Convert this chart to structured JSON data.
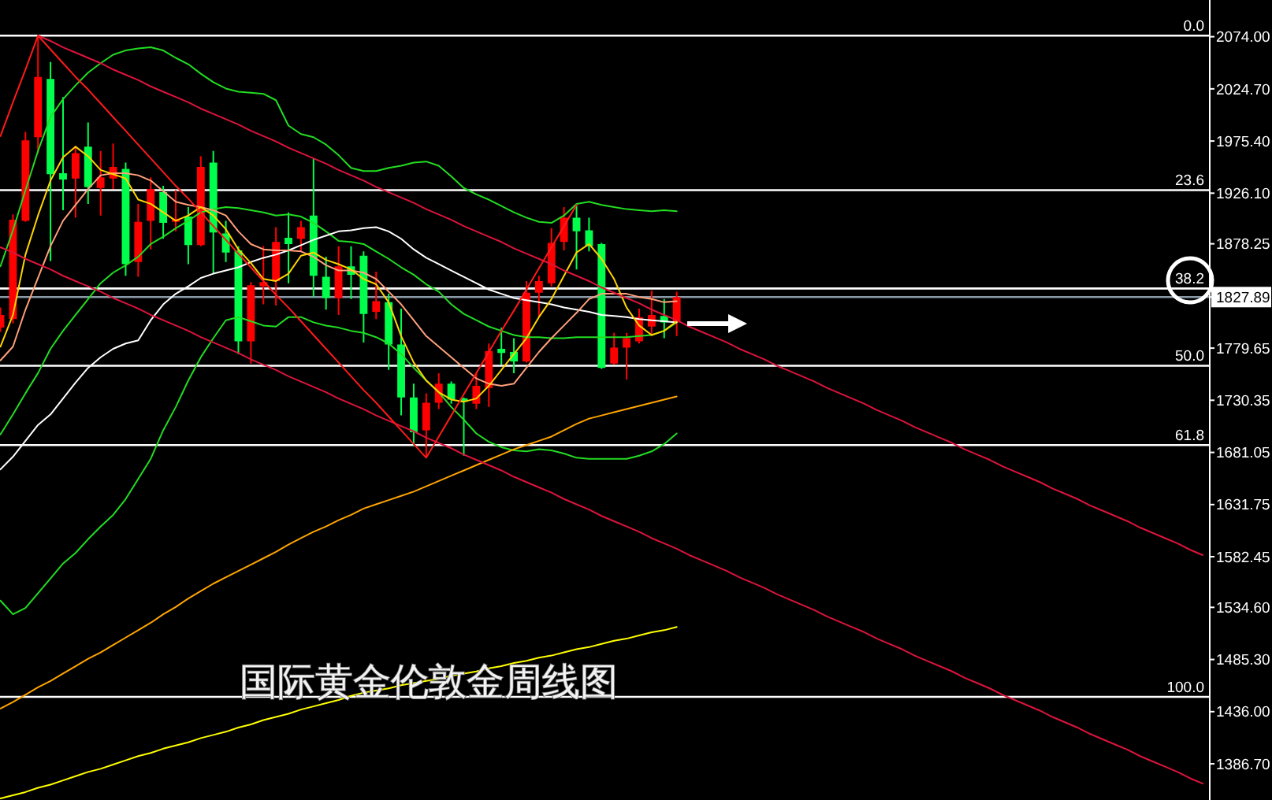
{
  "chart_data": {
    "type": "candlestick",
    "title": "国际黄金伦敦金周线图",
    "categories": [
      null,
      null,
      null,
      null,
      null,
      null,
      null,
      null,
      null,
      null,
      null,
      null,
      null,
      null,
      null,
      null,
      null,
      null,
      null,
      null,
      null,
      null,
      null,
      null,
      null,
      null,
      null,
      null,
      null,
      null,
      null,
      null,
      null,
      null,
      null,
      null,
      null,
      null,
      null,
      null,
      null,
      null,
      null,
      null,
      null,
      null,
      null,
      null,
      null,
      null,
      null,
      null,
      null,
      null,
      null,
      null,
      null,
      null,
      null,
      null,
      null,
      null,
      null,
      null,
      null,
      null,
      null,
      null,
      null,
      null,
      null,
      null,
      null,
      null,
      null,
      null,
      null,
      null,
      null,
      null,
      null,
      null,
      null,
      null,
      null,
      null,
      null,
      null,
      null,
      null,
      null,
      null,
      null,
      null,
      null,
      null,
      null
    ],
    "ohlc": [
      [
        1799,
        1818,
        1795,
        1811
      ],
      [
        1807,
        1906,
        1803,
        1901
      ],
      [
        1900,
        1984,
        1899,
        1976
      ],
      [
        1979,
        2075,
        1964,
        2036
      ],
      [
        2034,
        2050,
        1862,
        1944
      ],
      [
        1945,
        2017,
        1910,
        1939
      ],
      [
        1940,
        1971,
        1903,
        1964
      ],
      [
        1970,
        1993,
        1916,
        1932
      ],
      [
        1931,
        1966,
        1905,
        1941
      ],
      [
        1940,
        1973,
        1930,
        1951
      ],
      [
        1949,
        1955,
        1848,
        1859
      ],
      [
        1861,
        1916,
        1847,
        1899
      ],
      [
        1900,
        1941,
        1873,
        1930
      ],
      [
        1927,
        1933,
        1883,
        1898
      ],
      [
        1899,
        1929,
        1890,
        1902
      ],
      [
        1904,
        1913,
        1859,
        1877
      ],
      [
        1877,
        1961,
        1876,
        1951
      ],
      [
        1955,
        1966,
        1850,
        1889
      ],
      [
        1888,
        1900,
        1861,
        1870
      ],
      [
        1872,
        1876,
        1774,
        1786
      ],
      [
        1786,
        1842,
        1765,
        1839
      ],
      [
        1838,
        1876,
        1821,
        1842
      ],
      [
        1843,
        1894,
        1820,
        1880
      ],
      [
        1884,
        1908,
        1841,
        1878
      ],
      [
        1883,
        1900,
        1871,
        1894
      ],
      [
        1905,
        1959,
        1828,
        1848
      ],
      [
        1847,
        1866,
        1816,
        1827
      ],
      [
        1827,
        1876,
        1811,
        1857
      ],
      [
        1857,
        1876,
        1826,
        1849
      ],
      [
        1867,
        1871,
        1785,
        1812
      ],
      [
        1814,
        1852,
        1807,
        1824
      ],
      [
        1823,
        1831,
        1759,
        1783
      ],
      [
        1783,
        1817,
        1716,
        1733
      ],
      [
        1733,
        1746,
        1687,
        1700
      ],
      [
        1702,
        1737,
        1676,
        1728
      ],
      [
        1728,
        1756,
        1722,
        1746
      ],
      [
        1746,
        1748,
        1727,
        1731
      ],
      [
        1732,
        1733,
        1678,
        1729
      ],
      [
        1727,
        1756,
        1722,
        1744
      ],
      [
        1742,
        1784,
        1724,
        1777
      ],
      [
        1779,
        1799,
        1764,
        1775
      ],
      [
        1776,
        1789,
        1756,
        1767
      ],
      [
        1767,
        1843,
        1766,
        1832
      ],
      [
        1832,
        1848,
        1809,
        1843
      ],
      [
        1841,
        1893,
        1838,
        1879
      ],
      [
        1880,
        1913,
        1872,
        1903
      ],
      [
        1903,
        1915,
        1854,
        1890
      ],
      [
        1891,
        1903,
        1871,
        1876
      ],
      [
        1878,
        1879,
        1760,
        1761
      ],
      [
        1765,
        1794,
        1764,
        1780
      ],
      [
        1780,
        1794,
        1750,
        1789
      ],
      [
        1786,
        1817,
        1784,
        1809
      ],
      [
        1800,
        1834,
        1791,
        1811
      ],
      [
        1810,
        1826,
        1789,
        1804
      ],
      [
        1804,
        1833,
        1791,
        1828
      ],
      null,
      null,
      null,
      null,
      null,
      null,
      null,
      null,
      null,
      null,
      null,
      null,
      null,
      null,
      null,
      null,
      null,
      null,
      null,
      null,
      null,
      null,
      null,
      null,
      null,
      null,
      null,
      null,
      null,
      null,
      null,
      null,
      null,
      null,
      null,
      null,
      null,
      null,
      null,
      null,
      null,
      null
    ],
    "colors": [
      "#ff0000",
      "#ff0000",
      "#ff0000",
      "#ff0000",
      "#00ff4c",
      "#00ff4c",
      "#ff0000",
      "#00ff4c",
      "#ff0000",
      "#ff0000",
      "#00ff4c",
      "#ff0000",
      "#ff0000",
      "#00ff4c",
      "#ff0000",
      "#00ff4c",
      "#ff0000",
      "#00ff4c",
      "#00ff4c",
      "#00ff4c",
      "#ff0000",
      "#ff0000",
      "#ff0000",
      "#00ff4c",
      "#ff0000",
      "#00ff4c",
      "#00ff4c",
      "#ff0000",
      "#00ff4c",
      "#00ff4c",
      "#ff0000",
      "#00ff4c",
      "#00ff4c",
      "#00ff4c",
      "#ff0000",
      "#ff0000",
      "#00ff4c",
      "#00ff4c",
      "#ff0000",
      "#ff0000",
      "#00ff4c",
      "#00ff4c",
      "#ff0000",
      "#ff0000",
      "#ff0000",
      "#ff0000",
      "#00ff4c",
      "#00ff4c",
      "#00ff4c",
      "#ff0000",
      "#ff0000",
      "#ff0000",
      "#ff0000",
      "#00ff4c",
      "#ff0000",
      null,
      null,
      null,
      null,
      null,
      null,
      null,
      null,
      null,
      null,
      null,
      null,
      null,
      null,
      null,
      null,
      null,
      null,
      null,
      null,
      null,
      null,
      null,
      null,
      null,
      null,
      null,
      null,
      null,
      null,
      null,
      null,
      null,
      null,
      null,
      null,
      null,
      null,
      null,
      null,
      null,
      null
    ],
    "series": [
      {
        "type": "line",
        "color": "#22dd22",
        "values": [
          1857,
          1891,
          1929,
          1966,
          1998,
          2015,
          2028,
          2040,
          2049,
          2057,
          2061,
          2063,
          2064,
          2061,
          2054,
          2048,
          2039,
          2031,
          2025,
          2022,
          2021,
          2020,
          2014,
          1990,
          1982,
          1979,
          1972,
          1962,
          1950,
          1947,
          1947,
          1950,
          1952,
          1955,
          1956,
          1952,
          1942,
          1931,
          1925,
          1920,
          1914,
          1908,
          1903,
          1899,
          1898,
          1905,
          1916,
          1918,
          1915,
          1913,
          1911,
          1910,
          1909,
          1910,
          1909,
          null,
          null,
          null,
          null,
          null,
          null,
          null,
          null,
          null,
          null,
          null,
          null,
          null,
          null,
          null,
          null,
          null,
          null,
          null,
          null,
          null,
          null,
          null,
          null,
          null,
          null,
          null,
          null,
          null,
          null,
          null,
          null,
          null,
          null,
          null,
          null,
          null,
          null,
          null,
          null,
          null,
          null
        ]
      },
      {
        "type": "line",
        "color": "#22dd22",
        "values": [
          1698,
          1717,
          1737,
          1756,
          1779,
          1796,
          1811,
          1826,
          1841,
          1851,
          1858,
          1866,
          1878,
          1885,
          1893,
          1900,
          1908,
          1911,
          1913,
          1912,
          1910,
          1908,
          1905,
          1906,
          1904,
          1898,
          1890,
          1881,
          1880,
          1878,
          1871,
          1864,
          1856,
          1849,
          1840,
          1833,
          1821,
          1812,
          1806,
          1800,
          1796,
          1792,
          1790,
          1790,
          1789,
          1789,
          1790,
          1790,
          1790,
          1790,
          1790,
          1791,
          1792,
          1796,
          1804,
          null,
          null,
          null,
          null,
          null,
          null,
          null,
          null,
          null,
          null,
          null,
          null,
          null,
          null,
          null,
          null,
          null,
          null,
          null,
          null,
          null,
          null,
          null,
          null,
          null,
          null,
          null,
          null,
          null,
          null,
          null,
          null,
          null,
          null,
          null,
          null,
          null,
          null,
          null,
          null,
          null,
          null
        ]
      },
      {
        "type": "line",
        "color": "#22dd22",
        "values": [
          1541,
          1528,
          1534,
          1548,
          1562,
          1576,
          1586,
          1599,
          1611,
          1622,
          1637,
          1656,
          1675,
          1702,
          1724,
          1749,
          1771,
          1789,
          1806,
          1809,
          1805,
          1801,
          1800,
          1809,
          1809,
          1804,
          1801,
          1799,
          1796,
          1794,
          1790,
          1784,
          1774,
          1761,
          1749,
          1738,
          1724,
          1712,
          1699,
          1691,
          1686,
          1683,
          1682,
          1684,
          1683,
          1680,
          1676,
          1675,
          1675,
          1675,
          1675,
          1678,
          1682,
          1689,
          1699,
          null,
          null,
          null,
          null,
          null,
          null,
          null,
          null,
          null,
          null,
          null,
          null,
          null,
          null,
          null,
          null,
          null,
          null,
          null,
          null,
          null,
          null,
          null,
          null,
          null,
          null,
          null,
          null,
          null,
          null,
          null,
          null,
          null,
          null,
          null,
          null,
          null,
          null,
          null,
          null,
          null,
          null
        ]
      },
      {
        "type": "line",
        "color": "#ffffff",
        "values": [
          1665,
          1677,
          1692,
          1707,
          1717,
          1732,
          1747,
          1761,
          1771,
          1779,
          1784,
          1787,
          1806,
          1821,
          1831,
          1838,
          1846,
          1850,
          1853,
          1856,
          1861,
          1865,
          1868,
          1872,
          1877,
          1882,
          1886,
          1890,
          1891,
          1893,
          1894,
          1890,
          1883,
          1873,
          1865,
          1859,
          1853,
          1847,
          1841,
          1835,
          1831,
          1827,
          1825,
          1823,
          1821,
          1818,
          1816,
          1814,
          1811,
          1810,
          1809,
          1807,
          1806,
          1805,
          1804,
          null,
          null,
          null,
          null,
          null,
          null,
          null,
          null,
          null,
          null,
          null,
          null,
          null,
          null,
          null,
          null,
          null,
          null,
          null,
          null,
          null,
          null,
          null,
          null,
          null,
          null,
          null,
          null,
          null,
          null,
          null,
          null,
          null,
          null,
          null,
          null,
          null,
          null,
          null,
          null,
          null,
          null
        ]
      },
      {
        "type": "line",
        "color": "#ffa07a",
        "values": [
          1768,
          1781,
          1816,
          1846,
          1876,
          1900,
          1915,
          1930,
          1943,
          1945,
          1945,
          1943,
          1938,
          1928,
          1918,
          1915,
          1913,
          1910,
          1905,
          1890,
          1878,
          1873,
          1872,
          1872,
          1871,
          1866,
          1858,
          1853,
          1853,
          1851,
          1845,
          1833,
          1821,
          1806,
          1791,
          1781,
          1771,
          1761,
          1751,
          1746,
          1744,
          1746,
          1761,
          1776,
          1789,
          1801,
          1813,
          1826,
          1831,
          1831,
          1831,
          1828,
          1826,
          1823,
          1824,
          null,
          null,
          null,
          null,
          null,
          null,
          null,
          null,
          null,
          null,
          null,
          null,
          null,
          null,
          null,
          null,
          null,
          null,
          null,
          null,
          null,
          null,
          null,
          null,
          null,
          null,
          null,
          null,
          null,
          null,
          null,
          null,
          null,
          null,
          null,
          null,
          null,
          null,
          null,
          null,
          null,
          null
        ]
      },
      {
        "type": "line",
        "color": "#ffd400",
        "values": [
          1781,
          1811,
          1868,
          1905,
          1938,
          1960,
          1970,
          1961,
          1948,
          1944,
          1940,
          1920,
          1916,
          1908,
          1900,
          1905,
          1913,
          1905,
          1892,
          1873,
          1860,
          1845,
          1843,
          1850,
          1867,
          1870,
          1863,
          1859,
          1854,
          1845,
          1840,
          1823,
          1791,
          1766,
          1749,
          1738,
          1731,
          1729,
          1732,
          1744,
          1759,
          1774,
          1789,
          1809,
          1826,
          1848,
          1870,
          1878,
          1864,
          1845,
          1818,
          1801,
          1792,
          1796,
          1805,
          null,
          null,
          null,
          null,
          null,
          null,
          null,
          null,
          null,
          null,
          null,
          null,
          null,
          null,
          null,
          null,
          null,
          null,
          null,
          null,
          null,
          null,
          null,
          null,
          null,
          null,
          null,
          null,
          null,
          null,
          null,
          null,
          null,
          null,
          null,
          null,
          null,
          null,
          null,
          null,
          null,
          null
        ]
      },
      {
        "type": "line",
        "color": "#ffa500",
        "values": [
          1439,
          1445,
          1452,
          1459,
          1465,
          1472,
          1479,
          1486,
          1492,
          1499,
          1506,
          1513,
          1520,
          1528,
          1535,
          1543,
          1550,
          1557,
          1563,
          1569,
          1575,
          1581,
          1587,
          1594,
          1600,
          1606,
          1611,
          1617,
          1622,
          1628,
          1632,
          1636,
          1640,
          1644,
          1649,
          1654,
          1659,
          1664,
          1669,
          1674,
          1679,
          1684,
          1688,
          1692,
          1696,
          1702,
          1708,
          1713,
          1716,
          1719,
          1722,
          1725,
          1728,
          1731,
          1734,
          null,
          null,
          null,
          null,
          null,
          null,
          null,
          null,
          null,
          null,
          null,
          null,
          null,
          null,
          null,
          null,
          null,
          null,
          null,
          null,
          null,
          null,
          null,
          null,
          null,
          null,
          null,
          null,
          null,
          null,
          null,
          null,
          null,
          null,
          null,
          null,
          null,
          null,
          null,
          null,
          null,
          null
        ]
      },
      {
        "type": "line",
        "color": "#ffff00",
        "values": [
          1354,
          1357,
          1360,
          1364,
          1367,
          1371,
          1375,
          1379,
          1382,
          1386,
          1390,
          1394,
          1397,
          1401,
          1404,
          1407,
          1411,
          1414,
          1417,
          1421,
          1424,
          1428,
          1431,
          1434,
          1438,
          1441,
          1444,
          1447,
          1451,
          1454,
          1456,
          1458,
          1461,
          1463,
          1465,
          1467,
          1470,
          1472,
          1474,
          1477,
          1479,
          1482,
          1484,
          1487,
          1489,
          1492,
          1495,
          1497,
          1500,
          1503,
          1505,
          1508,
          1511,
          1513,
          1516,
          null,
          null,
          null,
          null,
          null,
          null,
          null,
          null,
          null,
          null,
          null,
          null,
          null,
          null,
          null,
          null,
          null,
          null,
          null,
          null,
          null,
          null,
          null,
          null,
          null,
          null,
          null,
          null,
          null,
          null,
          null,
          null,
          null,
          null,
          null,
          null,
          null,
          null,
          null,
          null,
          null,
          null
        ]
      },
      {
        "type": "line",
        "color": "#dc143c",
        "values": [
          null,
          null,
          null,
          2075,
          2070,
          2064,
          2059,
          2054,
          2049,
          2043,
          2038,
          2033,
          2027,
          2022,
          2017,
          2012,
          2006,
          2001,
          1996,
          1991,
          1985,
          1980,
          1975,
          1969,
          1964,
          1959,
          1954,
          1948,
          1943,
          1938,
          1932,
          1927,
          1922,
          1917,
          1911,
          1906,
          1901,
          1895,
          1890,
          1885,
          1880,
          1874,
          1869,
          1864,
          1859,
          1853,
          1848,
          1843,
          1837,
          1832,
          1827,
          1822,
          1816,
          1811,
          1806,
          1800,
          1795,
          1790,
          1785,
          1779,
          1774,
          1769,
          1763,
          1758,
          1753,
          1748,
          1742,
          1737,
          1732,
          1727,
          1721,
          1716,
          1711,
          1705,
          1700,
          1695,
          1690,
          1684,
          1679,
          1674,
          1668,
          1663,
          1658,
          1653,
          1647,
          1642,
          1637,
          1631,
          1626,
          1621,
          1616,
          1610,
          1605,
          1600,
          1595,
          1589,
          1584
        ]
      },
      {
        "type": "line",
        "color": "#dc143c",
        "values": [
          1875,
          1870,
          1864,
          1859,
          1854,
          1848,
          1843,
          1838,
          1833,
          1827,
          1822,
          1817,
          1811,
          1806,
          1801,
          1796,
          1790,
          1785,
          1780,
          1775,
          1769,
          1764,
          1759,
          1753,
          1748,
          1743,
          1738,
          1732,
          1727,
          1722,
          1716,
          1711,
          1706,
          1701,
          1695,
          1690,
          1685,
          1679,
          1674,
          1669,
          1664,
          1658,
          1653,
          1648,
          1643,
          1637,
          1632,
          1627,
          1621,
          1616,
          1611,
          1606,
          1600,
          1595,
          1590,
          1584,
          1579,
          1574,
          1569,
          1563,
          1558,
          1553,
          1547,
          1542,
          1537,
          1532,
          1526,
          1521,
          1516,
          1511,
          1505,
          1500,
          1495,
          1489,
          1484,
          1479,
          1474,
          1468,
          1463,
          1458,
          1452,
          1447,
          1442,
          1437,
          1431,
          1426,
          1421,
          1415,
          1410,
          1405,
          1400,
          1394,
          1389,
          1384,
          1379,
          1373,
          1368
        ]
      },
      {
        "type": "line",
        "color": "#ff1a1a",
        "values": [
          1980,
          2012,
          2043,
          2075,
          2062,
          2049,
          2036,
          2024,
          2011,
          1998,
          1985,
          1972,
          1959,
          1946,
          1933,
          1921,
          1908,
          1895,
          1882,
          1869,
          1856,
          1843,
          1830,
          1818,
          1805,
          1792,
          1779,
          1766,
          1753,
          1740,
          1728,
          1715,
          1702,
          1689,
          1676,
          1696,
          1716,
          1736,
          1756,
          1776,
          1796,
          1815,
          1835,
          1855,
          1875,
          1895,
          1915,
          null,
          null,
          null,
          null,
          null,
          null,
          null,
          null,
          null,
          null,
          null,
          null,
          null,
          null,
          null,
          null,
          null,
          null,
          null,
          null,
          null,
          null,
          null,
          null,
          null,
          null,
          null,
          null,
          null,
          null,
          null,
          null,
          null,
          null,
          null,
          null,
          null,
          null,
          null,
          null,
          null,
          null,
          null,
          null,
          null,
          null,
          null,
          null,
          null,
          null
        ]
      }
    ],
    "ylim": [
      1352.5,
      2108.7
    ],
    "yticks": [
      {
        "value": 2074,
        "label": "2074.00"
      },
      {
        "value": 2024.7,
        "label": "2024.70"
      },
      {
        "value": 1975.4,
        "label": "1975.40"
      },
      {
        "value": 1926.1,
        "label": "1926.10"
      },
      {
        "value": 1878.25,
        "label": "1878.25"
      },
      {
        "value": 1827.89,
        "label": "1827.89"
      },
      {
        "value": 1779.65,
        "label": "1779.65"
      },
      {
        "value": 1730.35,
        "label": "1730.35"
      },
      {
        "value": 1681.05,
        "label": "1681.05"
      },
      {
        "value": 1631.75,
        "label": "1631.75"
      },
      {
        "value": 1582.45,
        "label": "1582.45"
      },
      {
        "value": 1534.6,
        "label": "1534.60"
      },
      {
        "value": 1485.3,
        "label": "1485.30"
      },
      {
        "value": 1436,
        "label": "1436.00"
      },
      {
        "value": 1386.7,
        "label": "1386.70"
      }
    ],
    "ref_lines": [
      {
        "axis": "y",
        "value": 2075,
        "color": "#ffffff"
      },
      {
        "axis": "y",
        "value": 1929,
        "color": "#ffffff"
      },
      {
        "axis": "y",
        "value": 1836,
        "color": "#ffffff"
      },
      {
        "axis": "y",
        "value": 1763,
        "color": "#ffffff"
      },
      {
        "axis": "y",
        "value": 1688,
        "color": "#ffffff"
      },
      {
        "axis": "y",
        "value": 1450,
        "color": "#ffffff"
      },
      {
        "axis": "y",
        "value": 1827.89,
        "color": "#8a99a6"
      }
    ],
    "annotations": [
      {
        "text": "0.0",
        "y": 2075
      },
      {
        "text": "23.6",
        "y": 1929
      },
      {
        "text": "38.2",
        "y": 1836
      },
      {
        "text": "50.0",
        "y": 1763
      },
      {
        "text": "61.8",
        "y": 1688
      },
      {
        "text": "100.0",
        "y": 1450
      }
    ],
    "tick_labels": "y"
  }
}
